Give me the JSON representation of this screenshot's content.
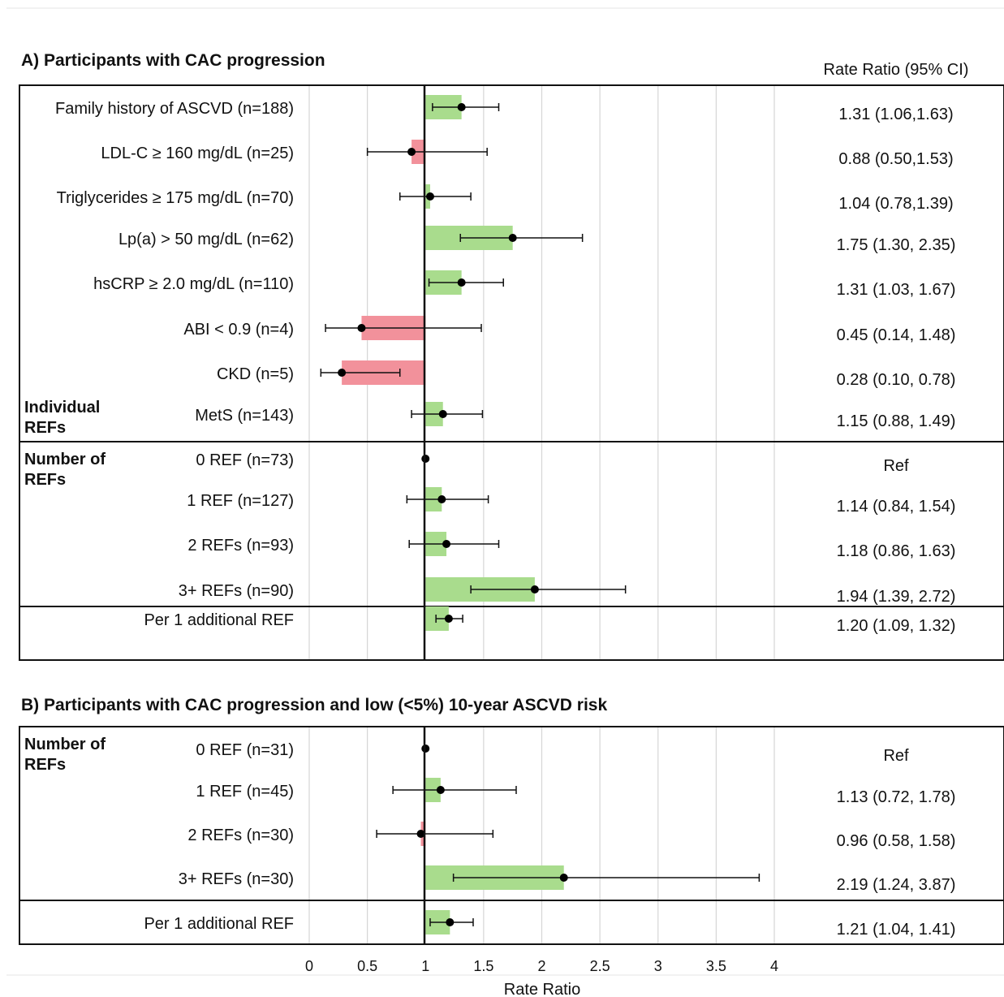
{
  "chart_data": [
    {
      "type": "forest",
      "title": "A) Participants with CAC progression",
      "column_header": "Rate Ratio (95% CI)",
      "reference_value": 1,
      "groups": [
        {
          "label": "Individual REFs",
          "rows": [
            {
              "label": "Family history of ASCVD (n=188)",
              "rr": 1.31,
              "lo": 1.06,
              "hi": 1.63,
              "text": "1.31 (1.06,1.63)"
            },
            {
              "label": "LDL-C ≥ 160 mg/dL (n=25)",
              "rr": 0.88,
              "lo": 0.5,
              "hi": 1.53,
              "text": "0.88 (0.50,1.53)"
            },
            {
              "label": "Triglycerides ≥ 175 mg/dL (n=70)",
              "rr": 1.04,
              "lo": 0.78,
              "hi": 1.39,
              "text": "1.04 (0.78,1.39)"
            },
            {
              "label": "Lp(a) > 50 mg/dL (n=62)",
              "rr": 1.75,
              "lo": 1.3,
              "hi": 2.35,
              "text": "1.75 (1.30, 2.35)"
            },
            {
              "label": "hsCRP ≥ 2.0 mg/dL (n=110)",
              "rr": 1.31,
              "lo": 1.03,
              "hi": 1.67,
              "text": "1.31 (1.03, 1.67)"
            },
            {
              "label": "ABI < 0.9 (n=4)",
              "rr": 0.45,
              "lo": 0.14,
              "hi": 1.48,
              "text": "0.45 (0.14, 1.48)"
            },
            {
              "label": "CKD (n=5)",
              "rr": 0.28,
              "lo": 0.1,
              "hi": 0.78,
              "text": "0.28 (0.10, 0.78)"
            },
            {
              "label": "MetS (n=143)",
              "rr": 1.15,
              "lo": 0.88,
              "hi": 1.49,
              "text": "1.15 (0.88, 1.49)"
            }
          ]
        },
        {
          "label": "Number of REFs",
          "rows": [
            {
              "label": "0 REF (n=73)",
              "rr": 1.0,
              "lo": null,
              "hi": null,
              "text": "Ref"
            },
            {
              "label": "1 REF (n=127)",
              "rr": 1.14,
              "lo": 0.84,
              "hi": 1.54,
              "text": "1.14 (0.84, 1.54)"
            },
            {
              "label": "2 REFs (n=93)",
              "rr": 1.18,
              "lo": 0.86,
              "hi": 1.63,
              "text": "1.18 (0.86, 1.63)"
            },
            {
              "label": "3+ REFs (n=90)",
              "rr": 1.94,
              "lo": 1.39,
              "hi": 2.72,
              "text": "1.94 (1.39, 2.72)"
            }
          ]
        },
        {
          "label": "",
          "rows": [
            {
              "label": "Per 1 additional REF",
              "rr": 1.2,
              "lo": 1.09,
              "hi": 1.32,
              "text": "1.20 (1.09, 1.32)"
            }
          ]
        }
      ]
    },
    {
      "type": "forest",
      "title": "B) Participants with CAC progression and low (<5%) 10-year ASCVD risk",
      "reference_value": 1,
      "groups": [
        {
          "label": "Number of REFs",
          "rows": [
            {
              "label": "0 REF (n=31)",
              "rr": 1.0,
              "lo": null,
              "hi": null,
              "text": "Ref"
            },
            {
              "label": "1 REF (n=45)",
              "rr": 1.13,
              "lo": 0.72,
              "hi": 1.78,
              "text": "1.13 (0.72, 1.78)"
            },
            {
              "label": "2 REFs (n=30)",
              "rr": 0.96,
              "lo": 0.58,
              "hi": 1.58,
              "text": "0.96 (0.58, 1.58)"
            },
            {
              "label": "3+ REFs (n=30)",
              "rr": 2.19,
              "lo": 1.24,
              "hi": 3.87,
              "text": "2.19 (1.24, 3.87)"
            }
          ]
        },
        {
          "label": "",
          "rows": [
            {
              "label": "Per 1 additional REF",
              "rr": 1.21,
              "lo": 1.04,
              "hi": 1.41,
              "text": "1.21 (1.04, 1.41)"
            }
          ]
        }
      ]
    }
  ],
  "x_axis": {
    "label": "Rate Ratio",
    "ticks": [
      0,
      0.5,
      1,
      1.5,
      2,
      2.5,
      3,
      3.5,
      4
    ],
    "tick_labels": [
      "0",
      "0.5",
      "1",
      "1.5",
      "2",
      "2.5",
      "3",
      "3.5",
      "4"
    ],
    "xlim": [
      0,
      4
    ],
    "grid": true
  },
  "colors": {
    "increase_bar": "#a9dc8d",
    "decrease_bar": "#f2919b",
    "point": "#000000",
    "gridline": "#d6d6d6"
  }
}
